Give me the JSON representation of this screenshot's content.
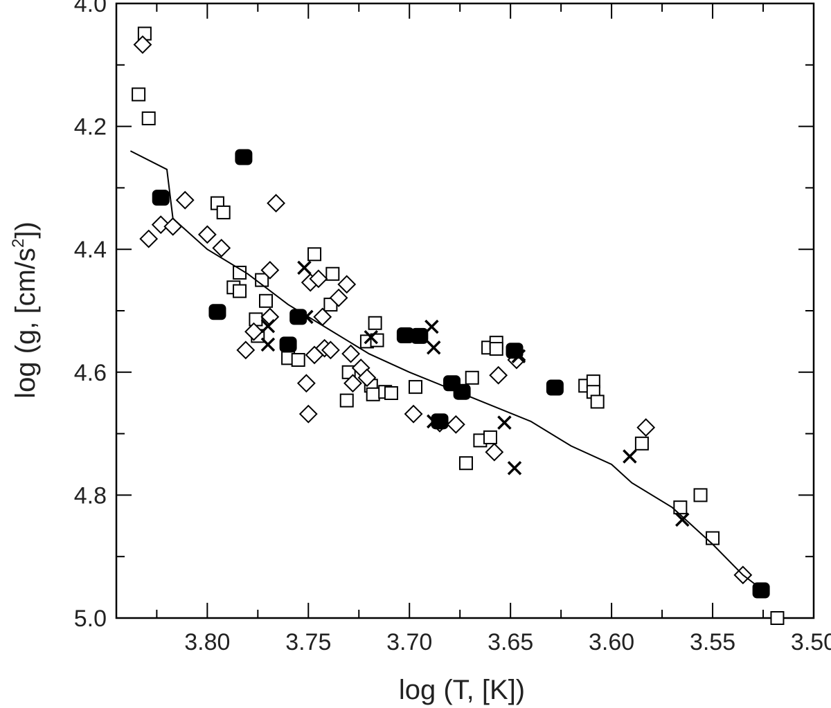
{
  "chart_data": {
    "type": "scatter",
    "title": "",
    "xlabel": "log (T, [K])",
    "ylabel": {
      "prefix": "log (g, [cm/s",
      "superscript": "2",
      "suffix": "])"
    },
    "xlim": [
      3.845,
      3.5
    ],
    "ylim": [
      4.0,
      5.0
    ],
    "x_ticks": [
      3.8,
      3.75,
      3.7,
      3.65,
      3.6,
      3.55,
      3.5
    ],
    "x_tick_labels": [
      "3.80",
      "3.75",
      "3.70",
      "3.65",
      "3.60",
      "3.55",
      "3.50"
    ],
    "y_ticks": [
      4.0,
      4.2,
      4.4,
      4.6,
      4.8,
      5.0
    ],
    "y_tick_labels": [
      "4.0",
      "4.2",
      "4.4",
      "4.6",
      "4.8",
      "5.0"
    ],
    "grid": false,
    "series": [
      {
        "name": "open squares",
        "marker": "square-open",
        "points": [
          [
            3.831,
            4.049
          ],
          [
            3.834,
            4.148
          ],
          [
            3.829,
            4.187
          ],
          [
            3.795,
            4.325
          ],
          [
            3.792,
            4.34
          ],
          [
            3.784,
            4.438
          ],
          [
            3.787,
            4.462
          ],
          [
            3.784,
            4.468
          ],
          [
            3.773,
            4.45
          ],
          [
            3.771,
            4.484
          ],
          [
            3.776,
            4.514
          ],
          [
            3.775,
            4.541
          ],
          [
            3.76,
            4.577
          ],
          [
            3.755,
            4.58
          ],
          [
            3.747,
            4.408
          ],
          [
            3.738,
            4.44
          ],
          [
            3.739,
            4.49
          ],
          [
            3.73,
            4.6
          ],
          [
            3.731,
            4.646
          ],
          [
            3.721,
            4.55
          ],
          [
            3.717,
            4.52
          ],
          [
            3.716,
            4.548
          ],
          [
            3.719,
            4.622
          ],
          [
            3.718,
            4.636
          ],
          [
            3.712,
            4.632
          ],
          [
            3.709,
            4.634
          ],
          [
            3.697,
            4.624
          ],
          [
            3.669,
            4.609
          ],
          [
            3.672,
            4.748
          ],
          [
            3.665,
            4.711
          ],
          [
            3.66,
            4.706
          ],
          [
            3.661,
            4.56
          ],
          [
            3.657,
            4.552
          ],
          [
            3.657,
            4.562
          ],
          [
            3.613,
            4.622
          ],
          [
            3.609,
            4.615
          ],
          [
            3.609,
            4.632
          ],
          [
            3.607,
            4.648
          ],
          [
            3.585,
            4.716
          ],
          [
            3.566,
            4.82
          ],
          [
            3.556,
            4.8
          ],
          [
            3.55,
            4.87
          ],
          [
            3.518,
            5.0
          ]
        ]
      },
      {
        "name": "open diamonds",
        "marker": "diamond-open",
        "points": [
          [
            3.832,
            4.067
          ],
          [
            3.823,
            4.36
          ],
          [
            3.829,
            4.383
          ],
          [
            3.817,
            4.363
          ],
          [
            3.811,
            4.32
          ],
          [
            3.8,
            4.376
          ],
          [
            3.793,
            4.398
          ],
          [
            3.781,
            4.564
          ],
          [
            3.777,
            4.534
          ],
          [
            3.769,
            4.434
          ],
          [
            3.769,
            4.51
          ],
          [
            3.766,
            4.325
          ],
          [
            3.751,
            4.618
          ],
          [
            3.75,
            4.668
          ],
          [
            3.749,
            4.454
          ],
          [
            3.747,
            4.572
          ],
          [
            3.745,
            4.448
          ],
          [
            3.743,
            4.51
          ],
          [
            3.742,
            4.561
          ],
          [
            3.739,
            4.564
          ],
          [
            3.735,
            4.479
          ],
          [
            3.731,
            4.457
          ],
          [
            3.729,
            4.57
          ],
          [
            3.728,
            4.618
          ],
          [
            3.724,
            4.593
          ],
          [
            3.721,
            4.609
          ],
          [
            3.698,
            4.668
          ],
          [
            3.685,
            4.683
          ],
          [
            3.677,
            4.685
          ],
          [
            3.658,
            4.73
          ],
          [
            3.656,
            4.605
          ],
          [
            3.647,
            4.58
          ],
          [
            3.583,
            4.69
          ],
          [
            3.535,
            4.93
          ]
        ]
      },
      {
        "name": "filled circles",
        "marker": "circle-filled",
        "points": [
          [
            3.823,
            4.316
          ],
          [
            3.782,
            4.25
          ],
          [
            3.795,
            4.502
          ],
          [
            3.76,
            4.555
          ],
          [
            3.755,
            4.51
          ],
          [
            3.702,
            4.54
          ],
          [
            3.695,
            4.541
          ],
          [
            3.685,
            4.68
          ],
          [
            3.679,
            4.618
          ],
          [
            3.674,
            4.632
          ],
          [
            3.648,
            4.565
          ],
          [
            3.628,
            4.625
          ],
          [
            3.526,
            4.955
          ]
        ]
      },
      {
        "name": "crosses",
        "marker": "cross",
        "points": [
          [
            3.752,
            4.43
          ],
          [
            3.77,
            4.525
          ],
          [
            3.77,
            4.555
          ],
          [
            3.751,
            4.51
          ],
          [
            3.719,
            4.543
          ],
          [
            3.689,
            4.526
          ],
          [
            3.688,
            4.56
          ],
          [
            3.688,
            4.68
          ],
          [
            3.653,
            4.682
          ],
          [
            3.646,
            4.574
          ],
          [
            3.648,
            4.756
          ],
          [
            3.591,
            4.737
          ],
          [
            3.565,
            4.84
          ]
        ]
      },
      {
        "name": "model track",
        "marker": "line",
        "points": [
          [
            3.838,
            4.24
          ],
          [
            3.82,
            4.27
          ],
          [
            3.817,
            4.35
          ],
          [
            3.8,
            4.4
          ],
          [
            3.78,
            4.44
          ],
          [
            3.76,
            4.49
          ],
          [
            3.74,
            4.53
          ],
          [
            3.72,
            4.57
          ],
          [
            3.7,
            4.6
          ],
          [
            3.67,
            4.64
          ],
          [
            3.64,
            4.68
          ],
          [
            3.62,
            4.72
          ],
          [
            3.6,
            4.75
          ],
          [
            3.59,
            4.78
          ],
          [
            3.57,
            4.82
          ],
          [
            3.56,
            4.85
          ],
          [
            3.55,
            4.88
          ],
          [
            3.535,
            4.93
          ],
          [
            3.525,
            4.955
          ]
        ]
      }
    ]
  }
}
